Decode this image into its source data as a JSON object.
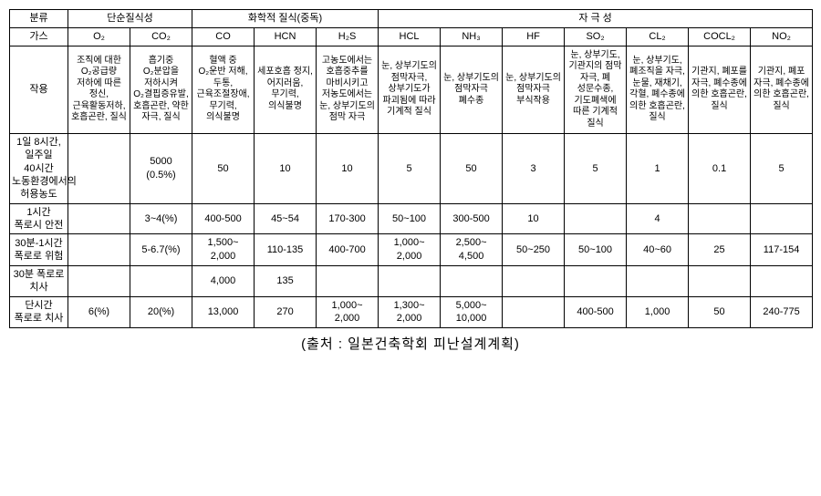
{
  "header": {
    "category": "분류",
    "simple": "단순질식성",
    "chemical": "화학적 질식(중독)",
    "irritant": "자 극 성",
    "gasLabel": "가스",
    "gases": [
      "O₂",
      "CO₂",
      "CO",
      "HCN",
      "H₂S",
      "HCL",
      "NH₃",
      "HF",
      "SO₂",
      "CL₂",
      "COCL₂",
      "NO₂"
    ]
  },
  "rows": {
    "effect": {
      "label": "작용",
      "cells": [
        "조직에 대한 O₂공급량 저하에 따른 정신, 근육활동저하, 호흡곤란, 질식",
        "흡기중 O₂분압을 저하시켜 O₂결핍증유발, 호흡곤란, 약한 자극, 질식",
        "혈액 중 O₂운반 저해, 두통, 근육조절장애, 무기력, 의식불명",
        "세포호흡 정지, 어지러움, 무기력, 의식불명",
        "고농도에서는 호흡중추를 마비시키고 저농도에서는 눈, 상부기도의 점막 자극",
        "눈, 상부기도의 점막자극, 상부기도가 파괴됨에 따라 기계적 질식",
        "눈, 상부기도의 점막자극 폐수종",
        "눈, 상부기도의 점막자극 부식작용",
        "눈, 상부기도, 기관지의 점막 자극, 폐 성문수종, 기도폐색에 따른 기계적 질식",
        "눈, 상부기도, 폐조직을 자극, 눈물, 재채기, 각혈, 폐수종에 의한 호흡곤란, 질식",
        "기관지, 폐포를 자극, 폐수종에 의한 호흡곤란, 질식",
        "기관지, 폐포 자극, 폐수종에 의한 호흡곤란, 질식"
      ]
    },
    "allow": {
      "label": "1일 8시간, 일주일 40시간 노동환경에서의 허용농도",
      "cells": [
        "",
        "5000\n(0.5%)",
        "50",
        "10",
        "10",
        "5",
        "50",
        "3",
        "5",
        "1",
        "0.1",
        "5"
      ]
    },
    "safe1h": {
      "label": "1시간 폭로시 안전",
      "cells": [
        "",
        "3~4(%)",
        "400-500",
        "45~54",
        "170-300",
        "50~100",
        "300-500",
        "10",
        "",
        "4",
        "",
        ""
      ]
    },
    "danger": {
      "label": "30분-1시간 폭로로 위험",
      "cells": [
        "",
        "5-6.7(%)",
        "1,500~\n2,000",
        "110-135",
        "400-700",
        "1,000~\n2,000",
        "2,500~\n4,500",
        "50~250",
        "50~100",
        "40~60",
        "25",
        "117-154"
      ]
    },
    "death30": {
      "label": "30분 폭로로 치사",
      "cells": [
        "",
        "",
        "4,000",
        "135",
        "",
        "",
        "",
        "",
        "",
        "",
        "",
        ""
      ]
    },
    "deathShort": {
      "label": "단시간 폭로로 치사",
      "cells": [
        "6(%)",
        "20(%)",
        "13,000",
        "270",
        "1,000~\n2,000",
        "1,300~\n2,000",
        "5,000~\n10,000",
        "",
        "400-500",
        "1,000",
        "50",
        "240-775"
      ]
    }
  },
  "source": "(출처 : 일본건축학회 피난설계계획)"
}
